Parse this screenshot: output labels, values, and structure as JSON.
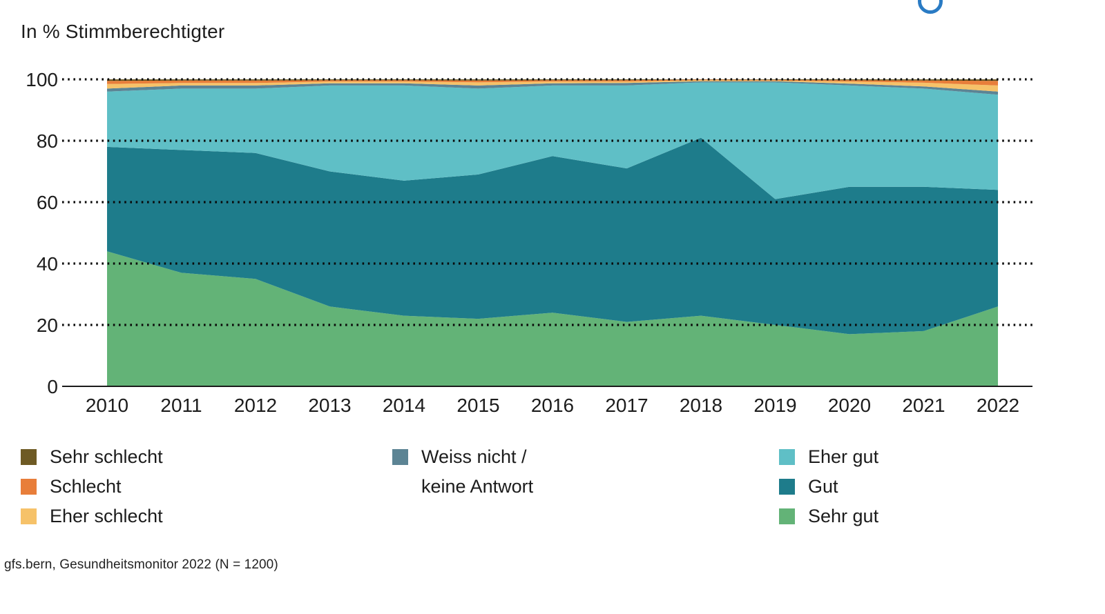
{
  "page": {
    "title": "In % Stimmberechtigter",
    "source": "gfs.bern, Gesundheitsmonitor 2022 (N = 1200)",
    "logo_color": "#2a7bc4",
    "text_color": "#1a1a1a"
  },
  "chart_data": {
    "type": "area",
    "stacked": true,
    "title": "In % Stimmberechtigter",
    "unit": "%",
    "ylim": [
      0,
      100
    ],
    "yticks": [
      0,
      20,
      40,
      60,
      80,
      100
    ],
    "grid": "dotted horizontal lines, drawn over areas",
    "legend_position": "below",
    "years": [
      2010,
      2011,
      2012,
      2013,
      2014,
      2015,
      2016,
      2017,
      2018,
      2019,
      2020,
      2021,
      2022
    ],
    "series": [
      {
        "name": "Sehr gut",
        "color": "#63b377",
        "values": [
          44,
          37,
          35,
          26,
          23,
          22,
          24,
          21,
          23,
          20,
          17,
          18,
          26
        ]
      },
      {
        "name": "Gut",
        "color": "#1e7c8b",
        "values": [
          34,
          40,
          41,
          44,
          44,
          47,
          51,
          50,
          58,
          41,
          48,
          47,
          38
        ]
      },
      {
        "name": "Eher gut",
        "color": "#5fbfc6",
        "values": [
          18,
          20,
          21,
          28,
          31,
          28,
          23,
          27,
          18,
          38,
          33,
          32,
          31
        ]
      },
      {
        "name": "Weiss nicht / keine Antwort",
        "color": "#5c8494",
        "values": [
          1,
          1,
          1,
          0.7,
          0.7,
          1,
          0.7,
          0.8,
          0.4,
          0.4,
          0.6,
          0.7,
          1
        ]
      },
      {
        "name": "Eher schlecht",
        "color": "#f6c269",
        "values": [
          1.5,
          0.8,
          0.8,
          0.6,
          0.6,
          1,
          0.6,
          0.5,
          0.3,
          0.2,
          0.7,
          1.2,
          2
        ]
      },
      {
        "name": "Schlecht",
        "color": "#e87e3a",
        "values": [
          1,
          0.8,
          0.8,
          0.4,
          0.4,
          0.6,
          0.4,
          0.4,
          0.2,
          0.2,
          0.4,
          0.7,
          1.5
        ]
      },
      {
        "name": "Sehr schlecht",
        "color": "#6e5a24",
        "values": [
          0.5,
          0.4,
          0.4,
          0.3,
          0.3,
          0.4,
          0.3,
          0.3,
          0.1,
          0.2,
          0.3,
          0.4,
          0.5
        ]
      }
    ]
  },
  "legend": {
    "columns": [
      {
        "items": [
          {
            "lines": [
              "Sehr schlecht"
            ],
            "color": "#6e5a24"
          },
          {
            "lines": [
              "Schlecht"
            ],
            "color": "#e87e3a"
          },
          {
            "lines": [
              "Eher schlecht"
            ],
            "color": "#f6c269"
          }
        ]
      },
      {
        "items": [
          {
            "lines": [
              "Weiss nicht /",
              "keine Antwort"
            ],
            "color": "#5c8494"
          }
        ]
      },
      {
        "items": [
          {
            "lines": [
              "Eher gut"
            ],
            "color": "#5fbfc6"
          },
          {
            "lines": [
              "Gut"
            ],
            "color": "#1e7c8b"
          },
          {
            "lines": [
              "Sehr gut"
            ],
            "color": "#63b377"
          }
        ]
      }
    ]
  }
}
